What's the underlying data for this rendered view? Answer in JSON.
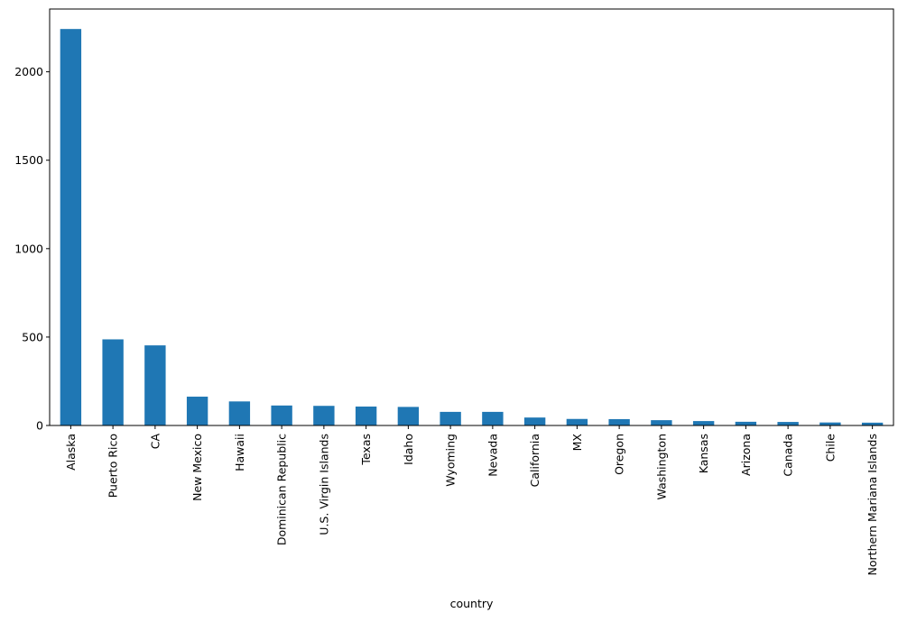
{
  "chart_data": {
    "type": "bar",
    "title": "",
    "xlabel": "country",
    "ylabel": "",
    "categories": [
      "Alaska",
      "Puerto Rico",
      "CA",
      "New Mexico",
      "Hawaii",
      "Dominican Republic",
      "U.S. Virgin Islands",
      "Texas",
      "Idaho",
      "Wyoming",
      "Nevada",
      "California",
      "MX",
      "Oregon",
      "Washington",
      "Kansas",
      "Arizona",
      "Canada",
      "Chile",
      "Northern Mariana Islands"
    ],
    "values": [
      2242,
      487,
      453,
      163,
      136,
      113,
      111,
      107,
      105,
      77,
      77,
      45,
      37,
      36,
      30,
      25,
      21,
      20,
      17,
      16
    ],
    "ylim": [
      0,
      2355
    ],
    "yticks": [
      0,
      500,
      1000,
      1500,
      2000
    ],
    "grid": false,
    "legend": "none",
    "bar_color": "#1f77b4"
  }
}
